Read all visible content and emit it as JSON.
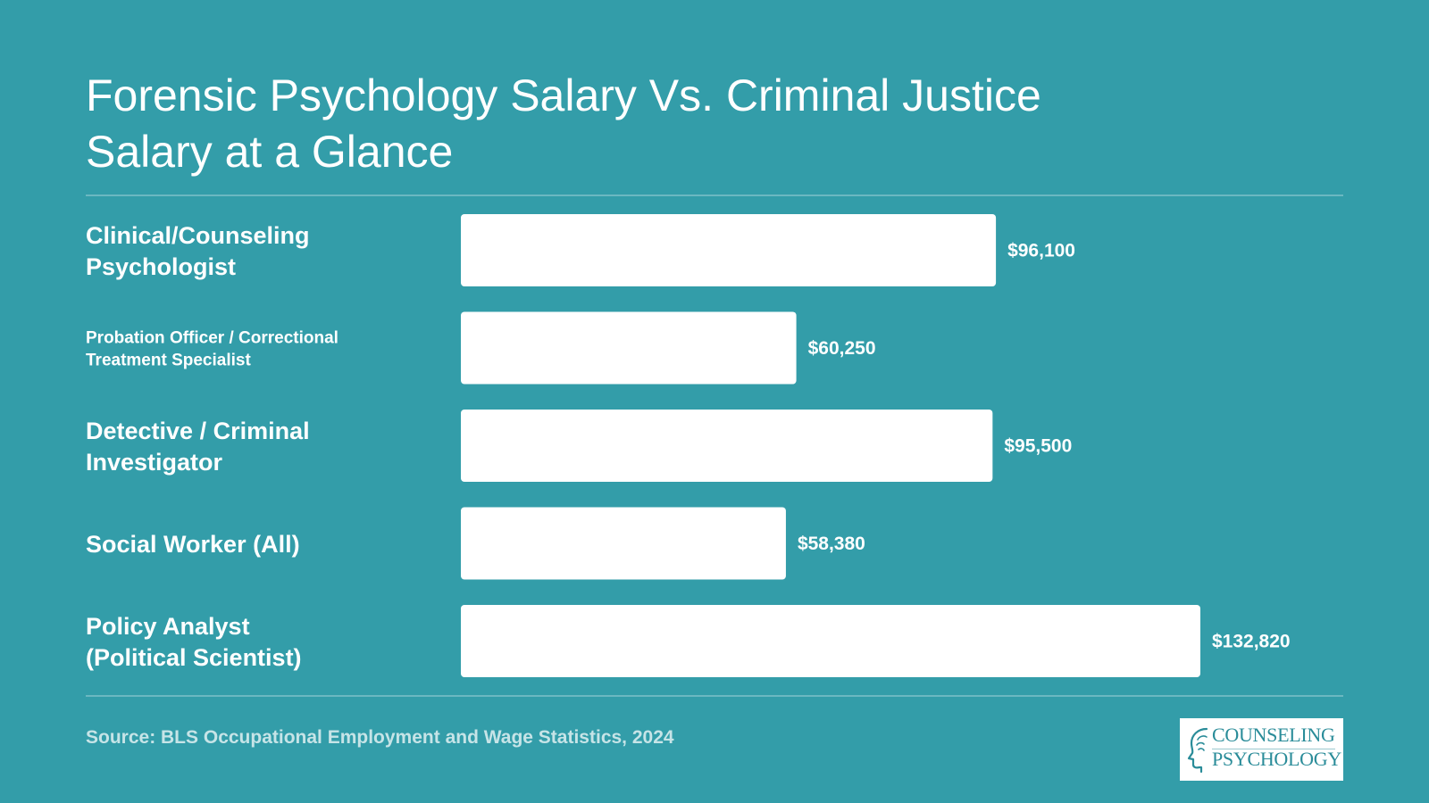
{
  "title": "Forensic Psychology Salary Vs. Criminal Justice Salary at a Glance",
  "source": "Source: BLS Occupational Employment and Wage Statistics, 2024",
  "logo": {
    "line1": "COUNSELING",
    "line2": "PSYCHOLOGY",
    "icon": "head-profile-icon"
  },
  "colors": {
    "background": "#339da9",
    "bar": "#ffffff",
    "text": "#ffffff"
  },
  "chart_data": {
    "type": "bar",
    "orientation": "horizontal",
    "categories": [
      "Clinical/Counseling Psychologist",
      "Probation Officer / Correctional Treatment Specialist",
      "Detective / Criminal Investigator",
      "Social Worker (All)",
      "Policy Analyst (Political Scientist)"
    ],
    "values": [
      96100,
      60250,
      95500,
      58380,
      132820
    ],
    "data_labels": [
      "$96,100",
      "$60,250",
      "$95,500",
      "$58,380",
      "$132,820"
    ],
    "xlabel": "",
    "ylabel": "",
    "xlim": [
      0,
      132820
    ],
    "grid": false,
    "legend": "none"
  }
}
